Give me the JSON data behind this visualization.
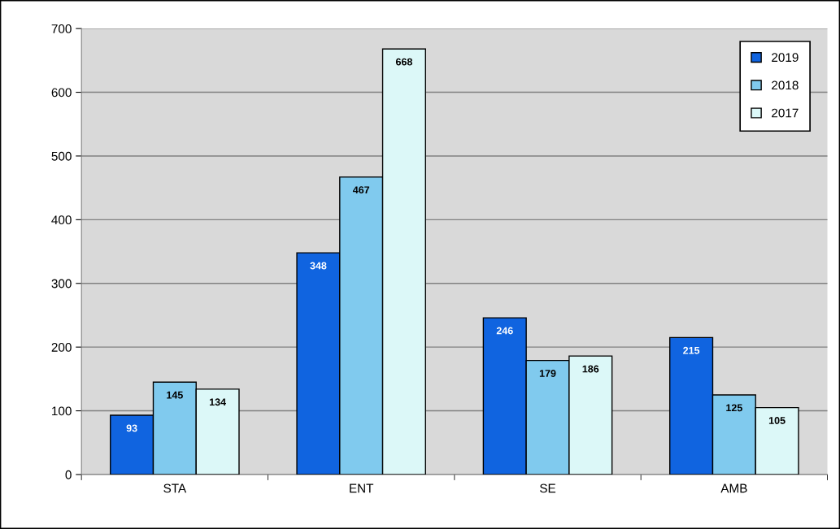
{
  "chart_data": {
    "type": "bar",
    "categories": [
      "STA",
      "ENT",
      "SE",
      "AMB"
    ],
    "series": [
      {
        "name": "2019",
        "color": "#1064e0",
        "values": [
          93,
          348,
          246,
          215
        ]
      },
      {
        "name": "2018",
        "color": "#80caee",
        "values": [
          145,
          467,
          179,
          125
        ]
      },
      {
        "name": "2017",
        "color": "#dcf8f8",
        "values": [
          134,
          668,
          186,
          105
        ]
      }
    ],
    "ylim": [
      0,
      700
    ],
    "yticks": [
      0,
      100,
      200,
      300,
      400,
      500,
      600,
      700
    ],
    "grid": "y",
    "legend": "top right",
    "data_labels": true
  }
}
